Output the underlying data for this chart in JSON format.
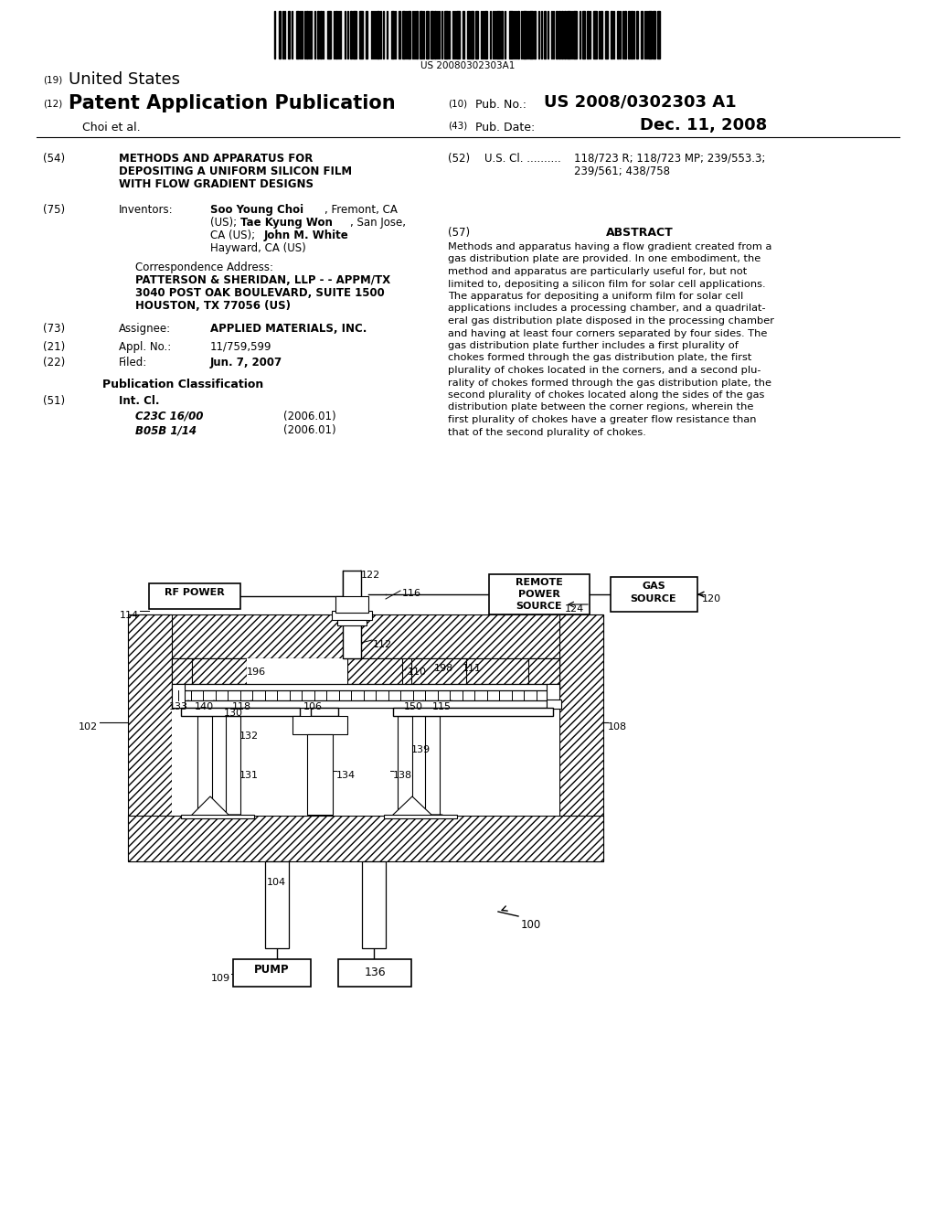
{
  "bg_color": "#ffffff",
  "barcode_text": "US 20080302303A1",
  "title_line1": "METHODS AND APPARATUS FOR",
  "title_line2": "DEPOSITING A UNIFORM SILICON FILM",
  "title_line3": "WITH FLOW GRADIENT DESIGNS",
  "us_cl_line1": "118/723 R; 118/723 MP; 239/553.3;",
  "us_cl_line2": "239/561; 438/758",
  "abstract_text": "Methods and apparatus having a flow gradient created from a gas distribution plate are provided. In one embodiment, the method and apparatus are particularly useful for, but not limited to, depositing a silicon film for solar cell applications. The apparatus for depositing a uniform film for solar cell applications includes a processing chamber, and a quadrilateral gas distribution plate disposed in the processing chamber and having at least four corners separated by four sides. The gas distribution plate further includes a first plurality of chokes formed through the gas distribution plate, the first plurality of chokes located in the corners, and a second plurality of chokes formed through the gas distribution plate, the second plurality of chokes located along the sides of the gas distribution plate between the corner regions, wherein the first plurality of chokes have a greater flow resistance than that of the second plurality of chokes."
}
